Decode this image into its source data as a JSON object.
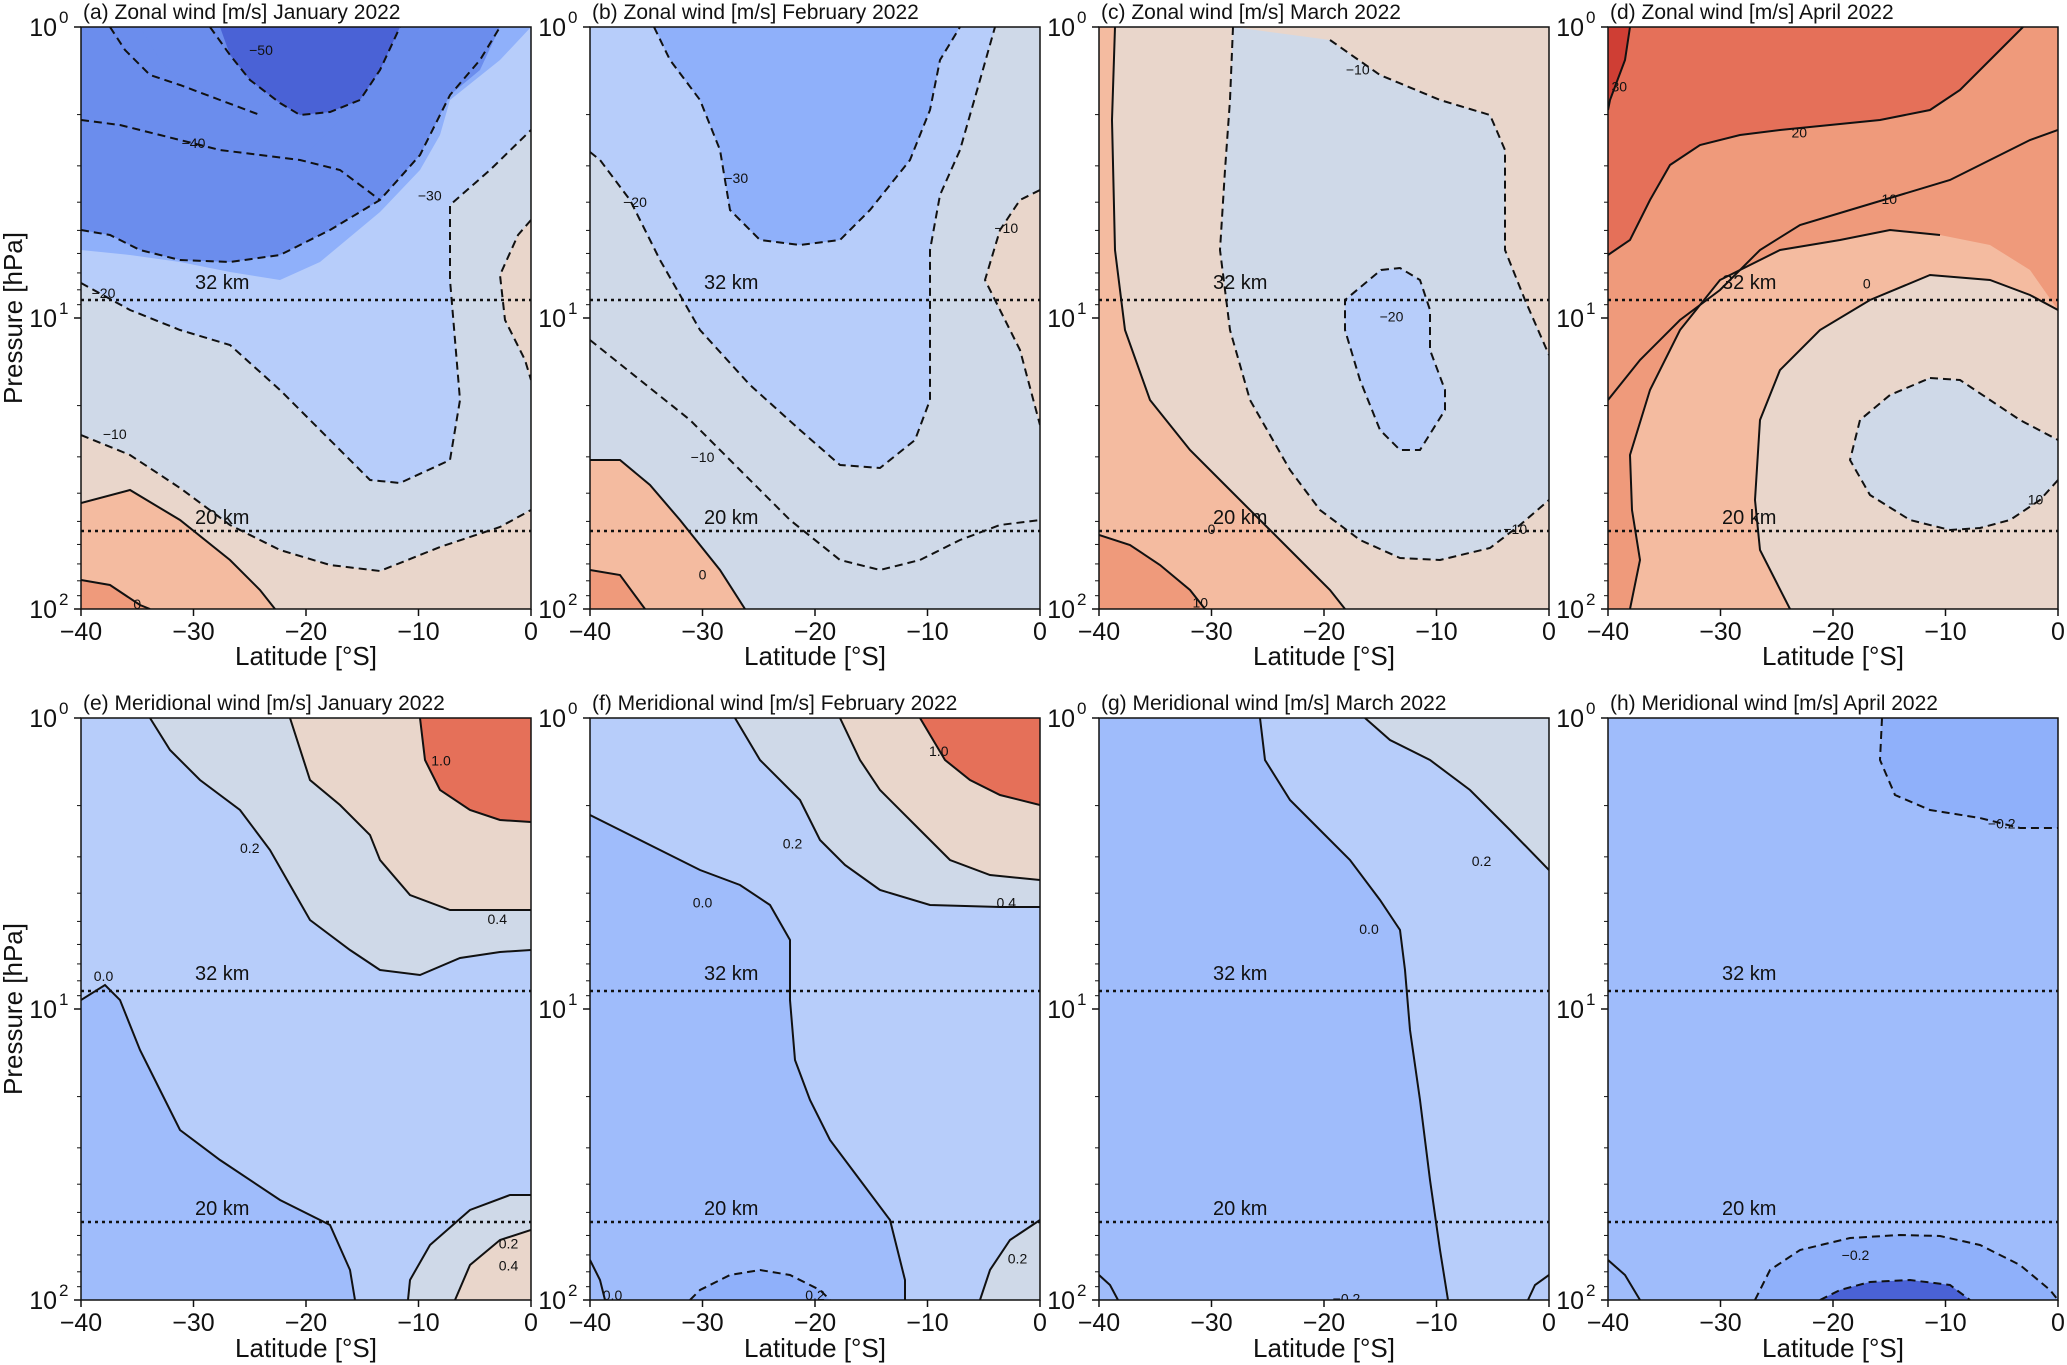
{
  "figure": {
    "ylabel": "Pressure [hPa]",
    "xlabel": "Latitude [°S]",
    "x_ticks": [
      "−40",
      "−30",
      "−20",
      "−10",
      "0"
    ],
    "y_ticks": [
      {
        "base": "10",
        "exp": "0"
      },
      {
        "base": "10",
        "exp": "1"
      },
      {
        "base": "10",
        "exp": "2"
      }
    ],
    "reference_lines": [
      "32 km",
      "20 km"
    ]
  },
  "colors": {
    "neg_strong": "#4a62d6",
    "neg_3": "#6b8ded",
    "neg_2": "#8fb0fa",
    "neg_1": "#b7cdfa",
    "neutral_neg": "#cfd9e8",
    "neutral_pos": "#e9d6cb",
    "pos_1": "#f4bba0",
    "pos_2": "#ef9a7b",
    "pos_3": "#e57059",
    "pos_strong": "#cf3e34"
  },
  "chart_data": [
    {
      "panel": "a",
      "type": "contour",
      "title": "(a) Zonal wind [m/s]  January 2022",
      "variable": "Zonal wind",
      "units": "m/s",
      "month": "January 2022",
      "xlim": [
        -40,
        0
      ],
      "ylim": [
        100,
        1
      ],
      "yscale": "log",
      "contour_levels": [
        -50,
        -40,
        -30,
        -20,
        -10,
        0,
        10
      ],
      "labels": [
        {
          "text": "−50",
          "x": -24,
          "p": 1.2
        },
        {
          "text": "−40",
          "x": -30,
          "p": 2.5
        },
        {
          "text": "−30",
          "x": -9,
          "p": 3.8
        },
        {
          "text": "−20",
          "x": -38,
          "p": 8.2
        },
        {
          "text": "−10",
          "x": -37,
          "p": 25
        },
        {
          "text": "0",
          "x": -35,
          "p": 96
        }
      ]
    },
    {
      "panel": "b",
      "type": "contour",
      "title": "(b) Zonal wind [m/s]  February 2022",
      "variable": "Zonal wind",
      "units": "m/s",
      "month": "February 2022",
      "xlim": [
        -40,
        0
      ],
      "ylim": [
        100,
        1
      ],
      "yscale": "log",
      "contour_levels": [
        -30,
        -20,
        -10,
        0,
        10
      ],
      "labels": [
        {
          "text": "−20",
          "x": -36,
          "p": 4.0
        },
        {
          "text": "−30",
          "x": -27,
          "p": 3.3
        },
        {
          "text": "−10",
          "x": -3,
          "p": 4.9
        },
        {
          "text": "−10",
          "x": -30,
          "p": 30
        },
        {
          "text": "0",
          "x": -30,
          "p": 76
        }
      ]
    },
    {
      "panel": "c",
      "type": "contour",
      "title": "(c) Zonal wind [m/s]  March 2022",
      "variable": "Zonal wind",
      "units": "m/s",
      "month": "March 2022",
      "xlim": [
        -40,
        0
      ],
      "ylim": [
        100,
        1
      ],
      "yscale": "log",
      "contour_levels": [
        -20,
        -10,
        0,
        10
      ],
      "labels": [
        {
          "text": "−10",
          "x": -17,
          "p": 1.4
        },
        {
          "text": "−20",
          "x": -14,
          "p": 9.9
        },
        {
          "text": "0",
          "x": -30,
          "p": 53
        },
        {
          "text": "−10",
          "x": -3,
          "p": 53
        },
        {
          "text": "10",
          "x": -31,
          "p": 95
        }
      ]
    },
    {
      "panel": "d",
      "type": "contour",
      "title": "(d) Zonal wind [m/s]  April 2022",
      "variable": "Zonal wind",
      "units": "m/s",
      "month": "April 2022",
      "xlim": [
        -40,
        0
      ],
      "ylim": [
        100,
        1
      ],
      "yscale": "log",
      "contour_levels": [
        -10,
        0,
        10,
        20,
        30
      ],
      "labels": [
        {
          "text": "30",
          "x": -39,
          "p": 1.6
        },
        {
          "text": "20",
          "x": -23,
          "p": 2.3
        },
        {
          "text": "10",
          "x": -15,
          "p": 3.9
        },
        {
          "text": "0",
          "x": -17,
          "p": 7.6
        },
        {
          "text": "10",
          "x": -2,
          "p": 42
        }
      ]
    },
    {
      "panel": "e",
      "type": "contour",
      "title": "(e) Meridional wind [m/s]  January 2022",
      "variable": "Meridional wind",
      "units": "m/s",
      "month": "January 2022",
      "xlim": [
        -40,
        0
      ],
      "ylim": [
        100,
        1
      ],
      "yscale": "log",
      "contour_levels": [
        0.0,
        0.2,
        0.4,
        1.0
      ],
      "labels": [
        {
          "text": "1.0",
          "x": -8,
          "p": 1.4
        },
        {
          "text": "0.2",
          "x": -25,
          "p": 2.8
        },
        {
          "text": "0.4",
          "x": -3,
          "p": 4.9
        },
        {
          "text": "0.0",
          "x": -38,
          "p": 7.7
        },
        {
          "text": "0.2",
          "x": -2,
          "p": 64
        },
        {
          "text": "0.4",
          "x": -2,
          "p": 76
        }
      ]
    },
    {
      "panel": "f",
      "type": "contour",
      "title": "(f) Meridional wind [m/s]  February 2022",
      "variable": "Meridional wind",
      "units": "m/s",
      "month": "February 2022",
      "xlim": [
        -40,
        0
      ],
      "ylim": [
        100,
        1
      ],
      "yscale": "log",
      "contour_levels": [
        -0.2,
        0.0,
        0.2,
        0.4,
        1.0
      ],
      "labels": [
        {
          "text": "1.0",
          "x": -9,
          "p": 1.3
        },
        {
          "text": "0.2",
          "x": -22,
          "p": 2.7
        },
        {
          "text": "0.4",
          "x": -3,
          "p": 4.3
        },
        {
          "text": "0.0",
          "x": -30,
          "p": 4.3
        },
        {
          "text": "0.2",
          "x": -2,
          "p": 72
        },
        {
          "text": "0.2",
          "x": -20,
          "p": 96
        },
        {
          "text": "0.0",
          "x": -38,
          "p": 96
        }
      ]
    },
    {
      "panel": "g",
      "type": "contour",
      "title": "(g) Meridional wind [m/s]  March 2022",
      "variable": "Meridional wind",
      "units": "m/s",
      "month": "March 2022",
      "xlim": [
        -40,
        0
      ],
      "ylim": [
        100,
        1
      ],
      "yscale": "log",
      "contour_levels": [
        -0.2,
        0.0,
        0.2
      ],
      "labels": [
        {
          "text": "0.2",
          "x": -6,
          "p": 3.1
        },
        {
          "text": "0.0",
          "x": -16,
          "p": 5.3
        },
        {
          "text": "−0.2",
          "x": -18,
          "p": 99
        }
      ]
    },
    {
      "panel": "h",
      "type": "contour",
      "title": "(h) Meridional wind [m/s]  April 2022",
      "variable": "Meridional wind",
      "units": "m/s",
      "month": "April 2022",
      "xlim": [
        -40,
        0
      ],
      "ylim": [
        100,
        1
      ],
      "yscale": "log",
      "contour_levels": [
        -0.4,
        -0.2,
        0.0
      ],
      "labels": [
        {
          "text": "−0.2",
          "x": -5,
          "p": 2.3
        },
        {
          "text": "−0.2",
          "x": -18,
          "p": 70
        }
      ]
    }
  ]
}
